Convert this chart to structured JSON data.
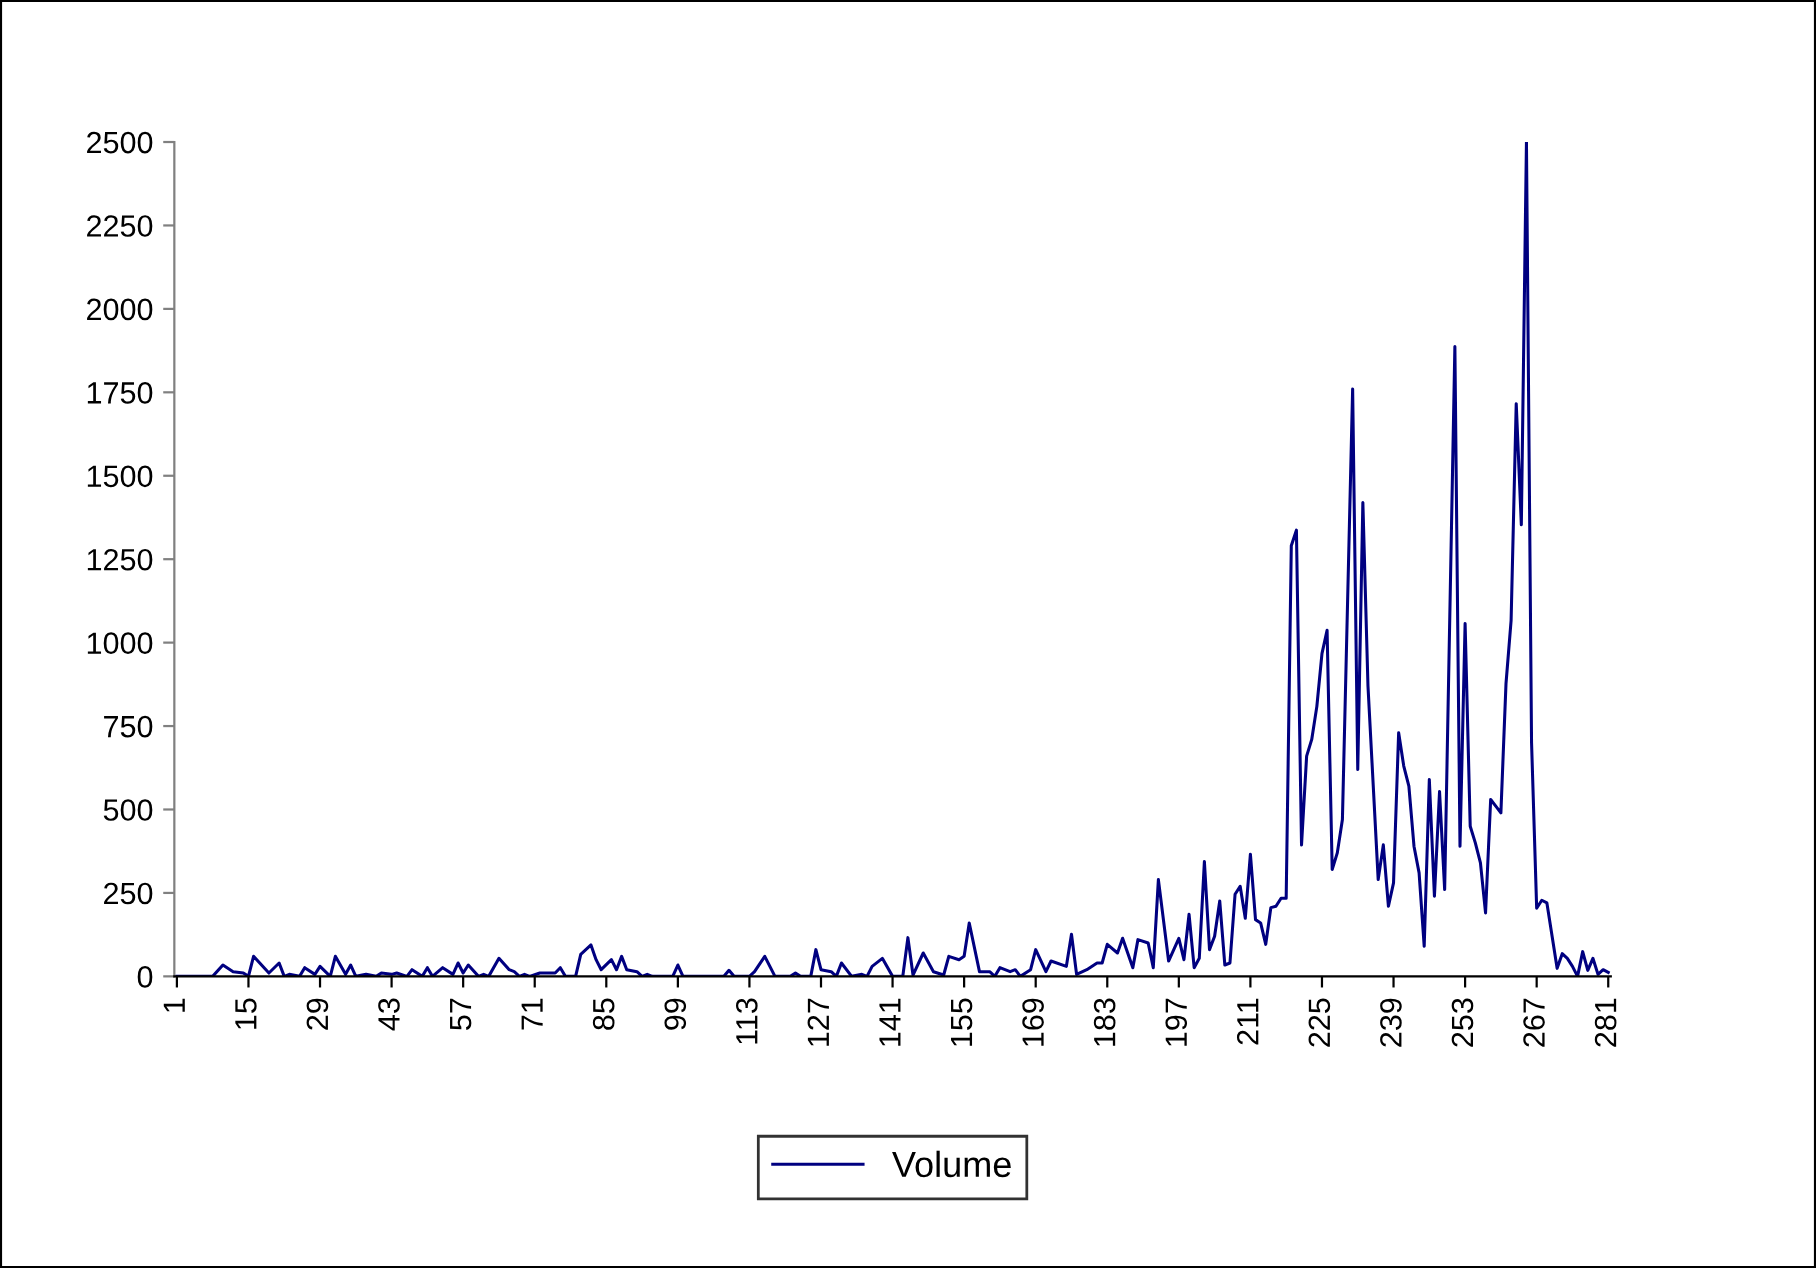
{
  "chart_data": {
    "type": "line",
    "xlim": [
      0.5,
      281.5
    ],
    "ylim": [
      0,
      2500
    ],
    "xticks": [
      1,
      15,
      29,
      43,
      57,
      71,
      85,
      99,
      113,
      127,
      141,
      155,
      169,
      183,
      197,
      211,
      225,
      239,
      253,
      267,
      281
    ],
    "yticks": [
      0,
      250,
      500,
      750,
      1000,
      1250,
      1500,
      1750,
      2000,
      2250,
      2500
    ],
    "grid": false,
    "legend": "bottom",
    "marker": "none",
    "line_style": "solid",
    "series": [
      {
        "name": "Volume",
        "color": "#000080",
        "x": [
          1,
          8,
          10,
          12,
          14,
          15,
          16,
          19,
          21,
          22,
          23,
          25,
          26,
          28,
          29,
          31,
          32,
          34,
          35,
          36,
          38,
          40,
          41,
          43,
          44,
          46,
          47,
          49,
          50,
          51,
          53,
          55,
          56,
          57,
          58,
          60,
          61,
          62,
          64,
          66,
          67,
          68,
          69,
          70,
          72,
          75,
          76,
          77,
          79,
          80,
          82,
          83,
          84,
          86,
          87,
          88,
          89,
          91,
          92,
          93,
          94,
          98,
          99,
          100,
          108,
          109,
          110,
          113,
          114,
          116,
          118,
          121,
          122,
          123,
          125,
          126,
          127,
          129,
          130,
          131,
          133,
          135,
          136,
          137,
          139,
          141,
          143,
          144,
          145,
          147,
          149,
          151,
          152,
          154,
          155,
          156,
          158,
          160,
          161,
          162,
          164,
          165,
          166,
          168,
          169,
          171,
          172,
          175,
          176,
          177,
          179,
          181,
          182,
          183,
          185,
          186,
          188,
          189,
          191,
          192,
          193,
          195,
          197,
          198,
          199,
          200,
          201,
          202,
          203,
          204,
          205,
          206,
          207,
          208,
          209,
          210,
          211,
          212,
          213,
          214,
          215,
          216,
          217,
          218,
          219,
          220,
          221,
          222,
          223,
          224,
          225,
          226,
          227,
          228,
          229,
          231,
          232,
          233,
          234,
          236,
          237,
          238,
          239,
          240,
          241,
          242,
          243,
          244,
          245,
          246,
          247,
          248,
          249,
          251,
          252,
          253,
          254,
          255,
          256,
          257,
          258,
          259,
          260,
          261,
          262,
          263,
          264,
          265,
          266,
          267,
          268,
          269,
          271,
          272,
          273,
          274,
          275,
          276,
          277,
          278,
          279,
          280,
          281
        ],
        "values": [
          0,
          0,
          34,
          14,
          10,
          0,
          60,
          10,
          40,
          0,
          6,
          0,
          26,
          6,
          30,
          0,
          60,
          6,
          34,
          0,
          6,
          0,
          10,
          6,
          10,
          0,
          20,
          0,
          26,
          0,
          26,
          6,
          40,
          10,
          34,
          0,
          6,
          0,
          54,
          20,
          14,
          0,
          6,
          0,
          10,
          10,
          26,
          0,
          0,
          66,
          94,
          50,
          20,
          50,
          20,
          60,
          20,
          14,
          0,
          6,
          0,
          0,
          34,
          0,
          0,
          18,
          0,
          0,
          14,
          60,
          0,
          0,
          10,
          0,
          0,
          80,
          20,
          14,
          0,
          40,
          0,
          6,
          0,
          30,
          54,
          0,
          0,
          116,
          4,
          70,
          14,
          4,
          60,
          50,
          60,
          160,
          14,
          14,
          0,
          26,
          14,
          20,
          0,
          20,
          80,
          14,
          46,
          30,
          126,
          6,
          20,
          40,
          40,
          96,
          70,
          114,
          26,
          110,
          100,
          26,
          290,
          46,
          114,
          50,
          186,
          26,
          54,
          344,
          80,
          120,
          226,
          34,
          40,
          246,
          270,
          174,
          366,
          170,
          160,
          96,
          206,
          210,
          234,
          234,
          1290,
          1337,
          394,
          660,
          710,
          809,
          967,
          1037,
          320,
          370,
          470,
          1760,
          620,
          1420,
          870,
          290,
          394,
          210,
          280,
          730,
          630,
          570,
          390,
          310,
          90,
          590,
          240,
          554,
          260,
          1887,
          390,
          1057,
          450,
          400,
          340,
          190,
          530,
          510,
          490,
          877,
          1067,
          1716,
          1353,
          2500,
          700,
          204,
          228,
          220,
          24,
          68,
          54,
          30,
          0,
          74,
          18,
          54,
          6,
          20,
          12
        ]
      }
    ]
  }
}
